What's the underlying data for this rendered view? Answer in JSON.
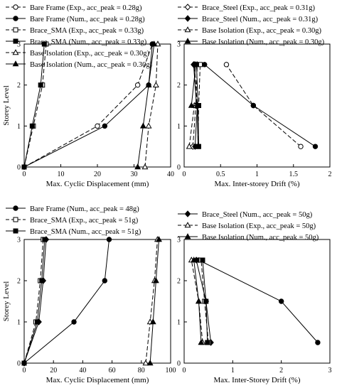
{
  "chart_data": [
    {
      "type": "line",
      "panel": "top-left",
      "xlabel": "Max. Cyclic Displacement (mm)",
      "ylabel": "Storey Level",
      "xlim": [
        0,
        40
      ],
      "ylim": [
        0,
        3
      ],
      "xticks": [
        0,
        10,
        20,
        30,
        40
      ],
      "yticks": [
        0,
        1,
        2,
        3
      ],
      "legend_position": "top",
      "series": [
        {
          "name": "Bare Frame (Exp., acc_peak = 0.28g)",
          "marker": "circle-open",
          "dash": true,
          "x": [
            0,
            20,
            31,
            35
          ],
          "y": [
            0,
            1,
            2,
            3
          ]
        },
        {
          "name": "Bare Frame (Num., acc_peak = 0.28g)",
          "marker": "circle",
          "dash": false,
          "x": [
            0,
            22,
            34,
            35
          ],
          "y": [
            0,
            1,
            2,
            3
          ]
        },
        {
          "name": "Brace_SMA (Exp., acc_peak = 0.33g)",
          "marker": "square-open",
          "dash": true,
          "x": [
            0,
            2.5,
            5,
            6
          ],
          "y": [
            0,
            1,
            2,
            3
          ]
        },
        {
          "name": "Brace_SMA (Num., acc_peak = 0.33g)",
          "marker": "square",
          "dash": false,
          "x": [
            0,
            2.2,
            4.5,
            5.5
          ],
          "y": [
            0,
            1,
            2,
            3
          ]
        },
        {
          "name": "Base Isolation (Exp., acc_peak = 0.30g)",
          "marker": "triangle-open",
          "dash": true,
          "x": [
            33,
            34,
            36,
            36.5
          ],
          "y": [
            0,
            1,
            2,
            3
          ]
        },
        {
          "name": "Base Isolation (Num., acc_peak = 0.30g)",
          "marker": "triangle",
          "dash": false,
          "x": [
            31,
            32.5,
            34,
            35.5
          ],
          "y": [
            0,
            1,
            2,
            3
          ]
        }
      ]
    },
    {
      "type": "line",
      "panel": "top-right",
      "xlabel": "Max. Inter-storey Drift (%)",
      "ylabel": "",
      "xlim": [
        0,
        2
      ],
      "ylim": [
        0,
        3
      ],
      "xticks": [
        0,
        0.5,
        1,
        1.5,
        2
      ],
      "yticks": [
        0,
        1,
        2,
        3
      ],
      "legend_position": "top",
      "series": [
        {
          "name": "Brace_Steel (Exp., acc_peak = 0.31g)",
          "marker": "diamond-open",
          "dash": true,
          "x": [
            0.12,
            0.16,
            0.18,
            0.14
          ],
          "y": [
            0.5,
            1.5,
            1.5,
            2.5
          ]
        },
        {
          "name": "Brace_Steel (Num., acc_peak = 0.31g)",
          "marker": "diamond",
          "dash": false,
          "x": [
            0.15,
            0.18,
            0.17,
            0.13
          ],
          "y": [
            0.5,
            1.5,
            1.5,
            2.5
          ]
        },
        {
          "name": "Base Isolation (Exp., acc_peak = 0.30g)",
          "marker": "triangle-open",
          "dash": true,
          "x": [
            0.07,
            0.14,
            0.16,
            0.18
          ],
          "y": [
            0.5,
            1.5,
            1.5,
            2.5
          ]
        },
        {
          "name": "Base Isolation (Num., acc_peak = 0.30g)",
          "marker": "triangle",
          "dash": false,
          "x": [
            0.19,
            0.18,
            0.1,
            0.16
          ],
          "y": [
            0.5,
            1.5,
            1.5,
            2.5
          ]
        },
        {
          "name": "Bare Frame (Exp.)",
          "marker": "circle-open",
          "dash": true,
          "legend": false,
          "x": [
            1.6,
            0.95,
            0.58
          ],
          "y": [
            0.5,
            1.5,
            2.5
          ]
        },
        {
          "name": "Bare Frame (Num.)",
          "marker": "circle",
          "dash": false,
          "legend": false,
          "x": [
            1.8,
            0.95,
            0.28
          ],
          "y": [
            0.5,
            1.5,
            2.5
          ]
        },
        {
          "name": "Brace_SMA (Exp.)",
          "marker": "square-open",
          "dash": true,
          "legend": false,
          "x": [
            0.19,
            0.2,
            0.22
          ],
          "y": [
            0.5,
            1.5,
            2.5
          ]
        },
        {
          "name": "Brace_SMA (Num.)",
          "marker": "square",
          "dash": false,
          "legend": false,
          "x": [
            0.2,
            0.19,
            0.17
          ],
          "y": [
            0.5,
            1.5,
            2.5
          ]
        }
      ]
    },
    {
      "type": "line",
      "panel": "bottom-left",
      "xlabel": "Max. Cyclic Displacement (mm)",
      "ylabel": "Storey Level",
      "xlim": [
        0,
        100
      ],
      "ylim": [
        0,
        3
      ],
      "xticks": [
        0,
        20,
        40,
        60,
        80,
        100
      ],
      "yticks": [
        0,
        1,
        2,
        3
      ],
      "legend_position": "top",
      "series": [
        {
          "name": "Bare Frame (Num., acc_peak = 48g)",
          "marker": "circle",
          "dash": false,
          "x": [
            0,
            34,
            55,
            58
          ],
          "y": [
            0,
            1,
            2,
            3
          ]
        },
        {
          "name": "Brace_SMA (Exp., acc_peak = 51g)",
          "marker": "square-open",
          "dash": true,
          "x": [
            0,
            8,
            11,
            13
          ],
          "y": [
            0,
            1,
            2,
            3
          ]
        },
        {
          "name": "Brace_SMA (Num., acc_peak = 51g)",
          "marker": "square",
          "dash": false,
          "x": [
            0,
            9,
            12,
            14
          ],
          "y": [
            0,
            1,
            2,
            3
          ]
        },
        {
          "name": "Brace_Steel (Num.)",
          "marker": "diamond",
          "dash": false,
          "legend": false,
          "x": [
            0,
            10,
            13,
            15
          ],
          "y": [
            0,
            1,
            2,
            3
          ]
        },
        {
          "name": "Base Isolation (Exp.)",
          "marker": "triangle-open",
          "dash": true,
          "legend": false,
          "x": [
            83,
            86,
            89,
            91
          ],
          "y": [
            0,
            1,
            2,
            3
          ]
        },
        {
          "name": "Base Isolation (Num.)",
          "marker": "triangle",
          "dash": false,
          "legend": false,
          "x": [
            86,
            88,
            90,
            92
          ],
          "y": [
            0,
            1,
            2,
            3
          ]
        }
      ]
    },
    {
      "type": "line",
      "panel": "bottom-right",
      "xlabel": "Max. Inter-Storey Drift (%)",
      "ylabel": "",
      "xlim": [
        0,
        3
      ],
      "ylim": [
        0,
        3
      ],
      "xticks": [
        0,
        1,
        2,
        3
      ],
      "yticks": [
        0,
        1,
        2,
        3
      ],
      "legend_position": "top",
      "series": [
        {
          "name": "Brace_Steel (Num., acc_peak = 50g)",
          "marker": "diamond",
          "dash": false,
          "x": [
            0.55,
            0.45,
            0.25
          ],
          "y": [
            0.5,
            1.5,
            2.5
          ]
        },
        {
          "name": "Base Isolation (Exp., acc_peak = 50g)",
          "marker": "triangle-open",
          "dash": true,
          "x": [
            0.38,
            0.3,
            0.15
          ],
          "y": [
            0.5,
            1.5,
            2.5
          ]
        },
        {
          "name": "Base Isolation (Num., acc_peak = 50g)",
          "marker": "triangle",
          "dash": false,
          "x": [
            0.35,
            0.3,
            0.2
          ],
          "y": [
            0.5,
            1.5,
            2.5
          ]
        },
        {
          "name": "Bare Frame (Num.)",
          "marker": "circle",
          "dash": false,
          "legend": false,
          "x": [
            2.75,
            2.0,
            0.3
          ],
          "y": [
            0.5,
            1.5,
            2.5
          ]
        },
        {
          "name": "Brace_SMA (Exp.)",
          "marker": "square-open",
          "dash": true,
          "legend": false,
          "x": [
            0.5,
            0.42,
            0.35
          ],
          "y": [
            0.5,
            1.5,
            2.5
          ]
        },
        {
          "name": "Brace_SMA (Num.)",
          "marker": "square",
          "dash": false,
          "legend": false,
          "x": [
            0.48,
            0.45,
            0.38
          ],
          "y": [
            0.5,
            1.5,
            2.5
          ]
        }
      ]
    }
  ]
}
